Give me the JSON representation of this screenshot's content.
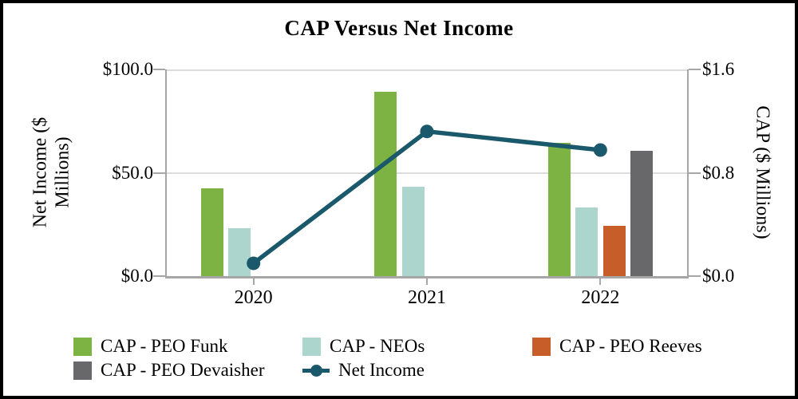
{
  "title": "CAP Versus Net Income",
  "chart_data": {
    "type": "bar",
    "subtype": "clustered bars with overlaid line (combo chart)",
    "categories": [
      "2020",
      "2021",
      "2022"
    ],
    "series": [
      {
        "name": "CAP - PEO Funk",
        "type": "bar",
        "axis": "right",
        "color": "#7db342",
        "values": [
          0.68,
          1.43,
          1.03
        ]
      },
      {
        "name": "CAP - NEOs",
        "type": "bar",
        "axis": "right",
        "color": "#abd5cd",
        "values": [
          0.37,
          0.69,
          0.53
        ]
      },
      {
        "name": "CAP - PEO Reeves",
        "type": "bar",
        "axis": "right",
        "color": "#c75d28",
        "values": [
          null,
          null,
          0.39
        ]
      },
      {
        "name": "CAP - PEO Devaisher",
        "type": "bar",
        "axis": "right",
        "color": "#68686a",
        "values": [
          null,
          null,
          0.97
        ]
      },
      {
        "name": "Net Income",
        "type": "line",
        "axis": "left",
        "color": "#1a586b",
        "values": [
          6.2,
          70.0,
          61.0
        ]
      }
    ],
    "left_axis": {
      "label": "Net Income ($ Millions)",
      "label_lines": [
        "Net Income ($",
        "Millions)"
      ],
      "ticks": [
        "$100.0",
        "$50.0",
        "$0.0"
      ],
      "tick_values": [
        100,
        50,
        0
      ],
      "min": 0,
      "max": 100
    },
    "right_axis": {
      "label": "CAP ($ Millions)",
      "ticks": [
        "$1.6",
        "$0.8",
        "$0.0"
      ],
      "tick_values": [
        1.6,
        0.8,
        0
      ],
      "min": 0,
      "max": 1.6
    },
    "grid": "horizontal gridlines at left-axis 50 and 100",
    "legend_position": "bottom"
  },
  "legend": {
    "items": [
      {
        "label": "CAP - PEO Funk",
        "marker": "square",
        "color": "#7db342"
      },
      {
        "label": "CAP - PEO Devaisher",
        "marker": "square",
        "color": "#68686a"
      },
      {
        "label": "CAP - NEOs",
        "marker": "square",
        "color": "#abd5cd"
      },
      {
        "label": "Net Income",
        "marker": "line-dot",
        "color": "#1a586b"
      },
      {
        "label": "CAP - PEO Reeves",
        "marker": "square",
        "color": "#c75d28"
      }
    ]
  },
  "colors": {
    "axis_line": "#a6a6a6",
    "gridline": "#dcdcdc",
    "text": "#000000",
    "frame_border": "#000000",
    "background": "#ffffff"
  }
}
